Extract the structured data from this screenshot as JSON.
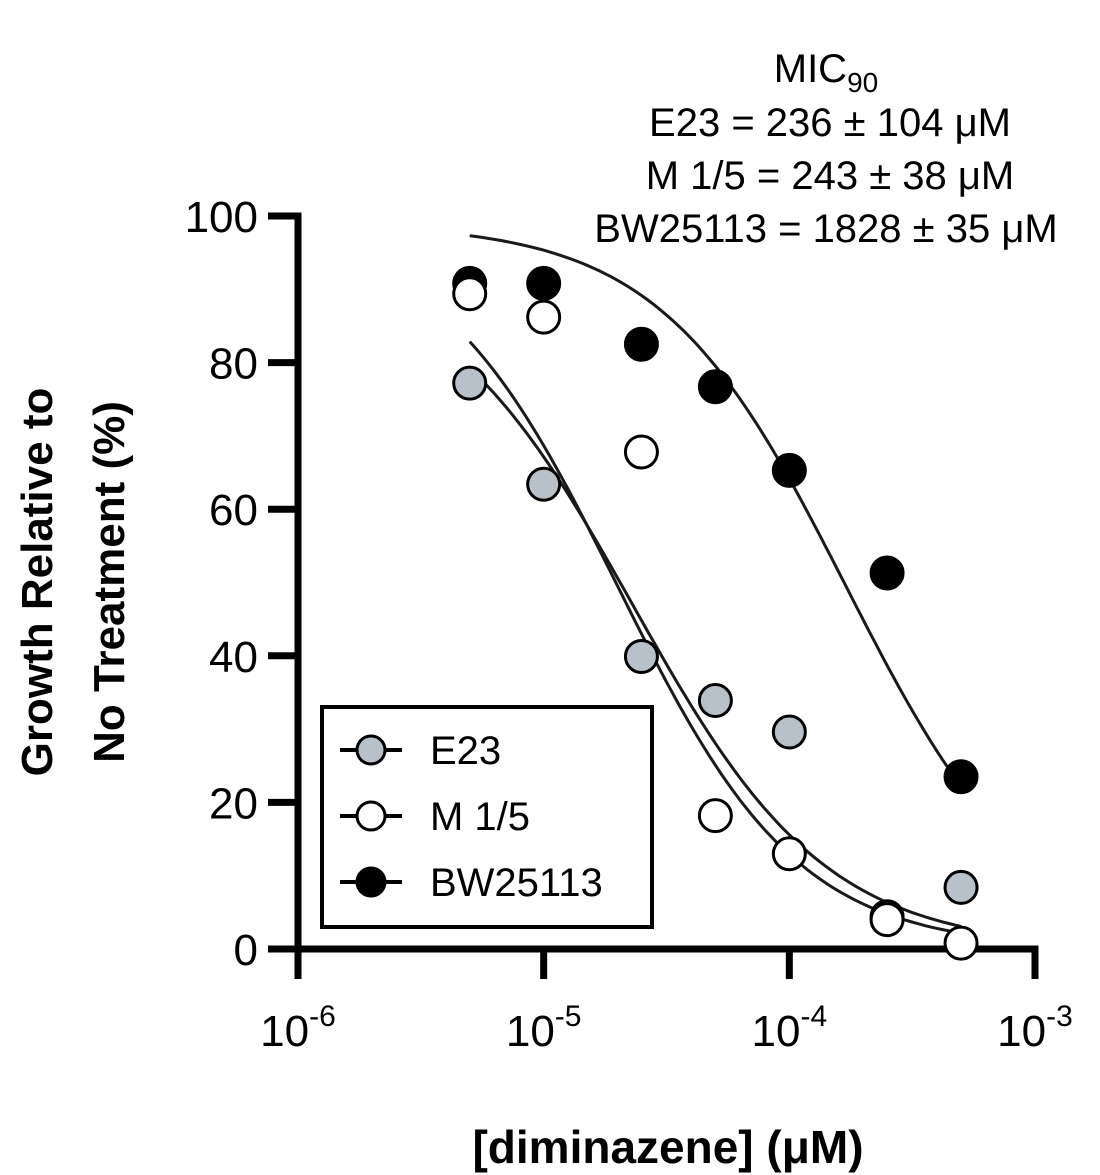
{
  "chart_data": {
    "type": "scatter",
    "title": "",
    "xlabel": "[diminazene] (μM)",
    "ylabel": [
      "Growth Relative to",
      "No Treatment (%)"
    ],
    "xscale": "log",
    "xlim": [
      1e-06,
      0.001
    ],
    "ylim": [
      0,
      100
    ],
    "y_ticks": [
      {
        "value": 0,
        "label": "0"
      },
      {
        "value": 20,
        "label": "20"
      },
      {
        "value": 40,
        "label": "40"
      },
      {
        "value": 60,
        "label": "60"
      },
      {
        "value": 80,
        "label": "80"
      },
      {
        "value": 100,
        "label": "100"
      }
    ],
    "x_ticks": [
      {
        "value": 1e-06,
        "base": "10",
        "exp": "-6"
      },
      {
        "value": 1e-05,
        "base": "10",
        "exp": "-5"
      },
      {
        "value": 0.0001,
        "base": "10",
        "exp": "-4"
      },
      {
        "value": 0.001,
        "base": "10",
        "exp": "-3"
      }
    ],
    "grid": false,
    "legend_position": "bottom-left",
    "annotation": {
      "header_main": "MIC",
      "header_sub": "90",
      "lines": [
        "E23 = 236 ± 104 μM",
        "M 1/5 = 243 ± 38 μM",
        "BW25113 = 1828 ± 35 μM"
      ]
    },
    "series": [
      {
        "name": "E23",
        "marker": "filled-gray",
        "color": "#b8c0c9",
        "points": [
          {
            "x": 5e-06,
            "y": 77.2
          },
          {
            "x": 1e-05,
            "y": 63.4
          },
          {
            "x": 2.5e-05,
            "y": 39.9
          },
          {
            "x": 5e-05,
            "y": 33.9
          },
          {
            "x": 0.0001,
            "y": 29.6
          },
          {
            "x": 0.00025,
            "y": 4.4
          },
          {
            "x": 0.0005,
            "y": 8.4
          }
        ],
        "fit": {
          "top": 94,
          "ic50": 2.3e-05,
          "hill": 1.1
        }
      },
      {
        "name": "M 1/5",
        "marker": "open",
        "color": "#ffffff",
        "points": [
          {
            "x": 5e-06,
            "y": 89.4
          },
          {
            "x": 1e-05,
            "y": 86.2
          },
          {
            "x": 2.5e-05,
            "y": 67.8
          },
          {
            "x": 5e-05,
            "y": 18.2
          },
          {
            "x": 0.0001,
            "y": 13.0
          },
          {
            "x": 0.00025,
            "y": 4.0
          },
          {
            "x": 0.0005,
            "y": 0.8
          }
        ],
        "fit": {
          "top": 99,
          "ic50": 2e-05,
          "hill": 1.18
        }
      },
      {
        "name": "BW25113",
        "marker": "filled-black",
        "color": "#000000",
        "points": [
          {
            "x": 5e-06,
            "y": 90.8
          },
          {
            "x": 1e-05,
            "y": 90.8
          },
          {
            "x": 2.5e-05,
            "y": 82.5
          },
          {
            "x": 5e-05,
            "y": 76.7
          },
          {
            "x": 0.0001,
            "y": 65.3
          },
          {
            "x": 0.00025,
            "y": 51.3
          },
          {
            "x": 0.0005,
            "y": 23.5
          }
        ],
        "fit": {
          "top": 99,
          "ic50": 0.00017,
          "hill": 1.15
        }
      }
    ]
  }
}
